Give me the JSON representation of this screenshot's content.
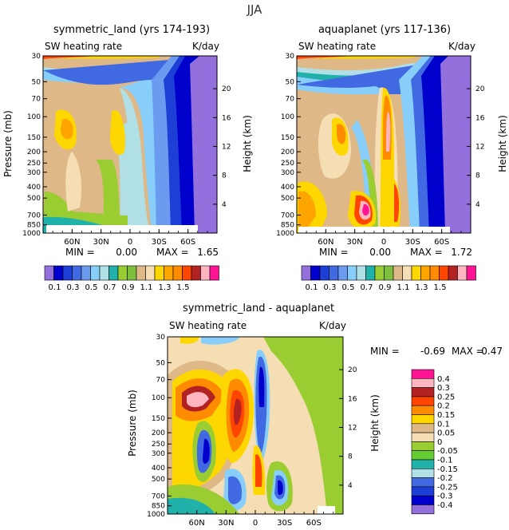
{
  "figure": {
    "season": "JJA"
  },
  "chart_data": [
    {
      "type": "heatmap",
      "title": "symmetric_land (yrs 174-193)",
      "left_label": "SW heating rate",
      "units": "K/day",
      "ylabel": "Pressure (mb)",
      "ylabel2": "Height (km)",
      "x_ticks": [
        "60N",
        "30N",
        "0",
        "30S",
        "60S"
      ],
      "x_tick_lat": [
        60,
        30,
        0,
        -30,
        -60
      ],
      "xlim": [
        90,
        -90
      ],
      "y_ticks": [
        30,
        50,
        70,
        100,
        150,
        200,
        250,
        300,
        400,
        500,
        700,
        850,
        1000
      ],
      "y_scale": "log",
      "ylim": [
        30,
        1000
      ],
      "height_ticks": [
        20,
        16,
        12,
        8,
        4
      ],
      "stats": {
        "min_label": "MIN =",
        "min": "0.00",
        "max_label": "MAX =",
        "max": "1.65"
      },
      "colorbar_labels": [
        "0.1",
        "0.3",
        "0.5",
        "0.7",
        "0.9",
        "1.1",
        "1.3",
        "1.5"
      ],
      "colorbar_levels": [
        0.1,
        0.2,
        0.3,
        0.4,
        0.5,
        0.6,
        0.7,
        0.8,
        0.9,
        1.0,
        1.1,
        1.2,
        1.3,
        1.4,
        1.5
      ]
    },
    {
      "type": "heatmap",
      "title": "aquaplanet (yrs 117-136)",
      "left_label": "SW heating rate",
      "units": "K/day",
      "ylabel": "Pressure (mb)",
      "ylabel2": "Height (km)",
      "x_ticks": [
        "60N",
        "30N",
        "0",
        "30S",
        "60S"
      ],
      "x_tick_lat": [
        60,
        30,
        0,
        -30,
        -60
      ],
      "xlim": [
        90,
        -90
      ],
      "y_ticks": [
        30,
        50,
        70,
        100,
        150,
        200,
        250,
        300,
        400,
        500,
        700,
        850,
        1000
      ],
      "y_scale": "log",
      "ylim": [
        30,
        1000
      ],
      "height_ticks": [
        20,
        16,
        12,
        8,
        4
      ],
      "stats": {
        "min_label": "MIN =",
        "min": "0.00",
        "max_label": "MAX =",
        "max": "1.72"
      },
      "colorbar_labels": [
        "0.1",
        "0.3",
        "0.5",
        "0.7",
        "0.9",
        "1.1",
        "1.3",
        "1.5"
      ],
      "colorbar_levels": [
        0.1,
        0.2,
        0.3,
        0.4,
        0.5,
        0.6,
        0.7,
        0.8,
        0.9,
        1.0,
        1.1,
        1.2,
        1.3,
        1.4,
        1.5
      ]
    },
    {
      "type": "heatmap",
      "title": "symmetric_land - aquaplanet",
      "left_label": "SW heating rate",
      "units": "K/day",
      "ylabel": "Pressure (mb)",
      "ylabel2": "Height (km)",
      "x_ticks": [
        "60N",
        "30N",
        "0",
        "30S",
        "60S"
      ],
      "x_tick_lat": [
        60,
        30,
        0,
        -30,
        -60
      ],
      "xlim": [
        90,
        -90
      ],
      "y_ticks": [
        30,
        50,
        70,
        100,
        150,
        200,
        250,
        300,
        400,
        500,
        700,
        850,
        1000
      ],
      "y_scale": "log",
      "ylim": [
        30,
        1000
      ],
      "height_ticks": [
        20,
        16,
        12,
        8,
        4
      ],
      "stats": {
        "min_label": "MIN =",
        "min": "-0.69",
        "max_label": "MAX =",
        "max": "0.47"
      },
      "colorbar_labels": [
        "0.4",
        "0.3",
        "0.25",
        "0.2",
        "0.15",
        "0.1",
        "0.05",
        "0",
        "-0.05",
        "-0.1",
        "-0.15",
        "-0.2",
        "-0.25",
        "-0.3",
        "-0.4"
      ],
      "colorbar_levels": [
        0.4,
        0.3,
        0.25,
        0.2,
        0.15,
        0.1,
        0.05,
        0,
        -0.05,
        -0.1,
        -0.15,
        -0.2,
        -0.25,
        -0.3,
        -0.4
      ]
    }
  ],
  "palette": {
    "abs": [
      "#9370db",
      "#0000cd",
      "#1e3fd6",
      "#4169e1",
      "#6a9bef",
      "#87cefa",
      "#b0e0e6",
      "#20b2aa",
      "#9acd32",
      "#7cbf3c",
      "#deb887",
      "#f5deb3",
      "#ffd700",
      "#ffa500",
      "#ff8c00",
      "#ff4500",
      "#b22222",
      "#ffb6c1",
      "#ff1493"
    ],
    "diff": [
      "#ff1493",
      "#ffb6c1",
      "#b22222",
      "#ff4500",
      "#ff8c00",
      "#ffd700",
      "#deb887",
      "#f5deb3",
      "#9acd32",
      "#66cc33",
      "#20b2aa",
      "#b0e0e6",
      "#4169e1",
      "#1e3fd6",
      "#0000cd",
      "#9370db"
    ]
  }
}
